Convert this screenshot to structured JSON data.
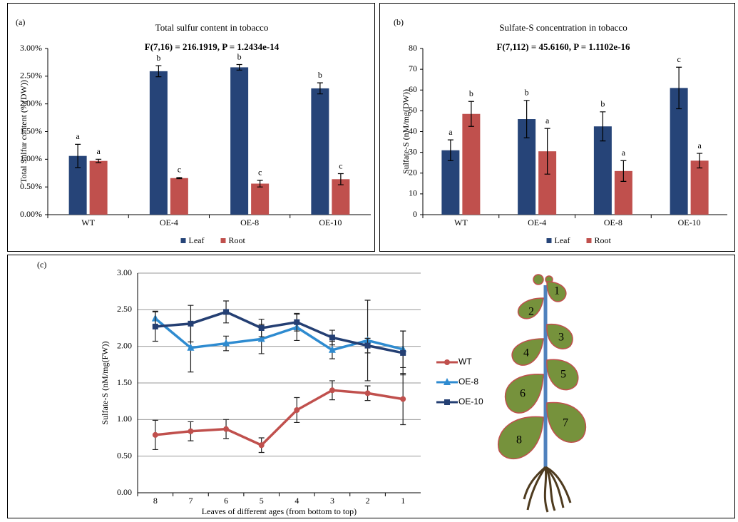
{
  "chart_data": [
    {
      "type": "bar",
      "panel": "(a)",
      "title": "Total sulfur content in tobacco",
      "subtitle": "F(7,16) = 216.1919, P = 1.2434e-14",
      "ylabel": "Total Sulfur content (%(DW))",
      "categories": [
        "WT",
        "OE-4",
        "OE-8",
        "OE-10"
      ],
      "series": [
        {
          "name": "Leaf",
          "color": "#264478",
          "values": [
            1.06,
            2.59,
            2.66,
            2.28
          ],
          "errors": [
            0.21,
            0.1,
            0.05,
            0.1
          ],
          "letters": [
            "a",
            "b",
            "b",
            "b"
          ]
        },
        {
          "name": "Root",
          "color": "#C0504D",
          "values": [
            0.97,
            0.66,
            0.56,
            0.64
          ],
          "errors": [
            0.03,
            0.01,
            0.06,
            0.1
          ],
          "letters": [
            "a",
            "c",
            "c",
            "c"
          ]
        }
      ],
      "ylim": [
        0,
        3
      ],
      "yticks": [
        {
          "value": 0,
          "label": "0.00%"
        },
        {
          "value": 0.5,
          "label": "0.50%"
        },
        {
          "value": 1,
          "label": "1.00%"
        },
        {
          "value": 1.5,
          "label": "1.50%"
        },
        {
          "value": 2,
          "label": "2.00%"
        },
        {
          "value": 2.5,
          "label": "2.50%"
        },
        {
          "value": 3,
          "label": "3.00%"
        }
      ],
      "legend": "bottom"
    },
    {
      "type": "bar",
      "panel": "(b)",
      "title": "Sulfate-S concentration in tobacco",
      "subtitle": "F(7,112) = 45.6160, P = 1.1102e-16",
      "ylabel": "Sulfate-S (nM/mg(DW))",
      "categories": [
        "WT",
        "OE-4",
        "OE-8",
        "OE-10"
      ],
      "series": [
        {
          "name": "Leaf",
          "color": "#264478",
          "values": [
            31,
            46,
            42.5,
            61
          ],
          "errors": [
            5,
            9,
            7,
            10
          ],
          "letters": [
            "a",
            "b",
            "b",
            "c"
          ]
        },
        {
          "name": "Root",
          "color": "#C0504D",
          "values": [
            48.5,
            30.5,
            21,
            26
          ],
          "errors": [
            6,
            11,
            5,
            3.5
          ],
          "letters": [
            "b",
            "a",
            "a",
            "a"
          ]
        }
      ],
      "ylim": [
        0,
        80
      ],
      "yticks": [
        0,
        10,
        20,
        30,
        40,
        50,
        60,
        70,
        80
      ],
      "legend": "bottom"
    },
    {
      "type": "line",
      "panel": "(c)",
      "xlabel": "Leaves of different ages (from bottom to top)",
      "ylabel": "Sulfate-S (nM/mg(FW))",
      "categories": [
        "8",
        "7",
        "6",
        "5",
        "4",
        "3",
        "2",
        "1"
      ],
      "series": [
        {
          "name": "WT",
          "color": "#C0504D",
          "marker": "circle",
          "values": [
            0.79,
            0.84,
            0.87,
            0.65,
            1.13,
            1.4,
            1.36,
            1.28
          ],
          "errors": [
            0.2,
            0.13,
            0.13,
            0.1,
            0.17,
            0.13,
            0.1,
            0.35
          ]
        },
        {
          "name": "OE-8",
          "color": "#2E8BD0",
          "marker": "triangle",
          "values": [
            2.38,
            1.98,
            2.04,
            2.1,
            2.26,
            1.95,
            2.08,
            1.96
          ],
          "errors": [
            0.1,
            0.33,
            0.1,
            0.2,
            0.18,
            0.12,
            0.55,
            0.25
          ]
        },
        {
          "name": "OE-10",
          "color": "#243F73",
          "marker": "square",
          "values": [
            2.27,
            2.31,
            2.47,
            2.25,
            2.33,
            2.12,
            2.01,
            1.91
          ],
          "errors": [
            0.2,
            0.25,
            0.15,
            0.12,
            0.12,
            0.1,
            0.1,
            0.3
          ]
        }
      ],
      "ylim": [
        0,
        3
      ],
      "yticks": [
        {
          "value": 0,
          "label": "0.00"
        },
        {
          "value": 0.5,
          "label": "0.50"
        },
        {
          "value": 1,
          "label": "1.00"
        },
        {
          "value": 1.5,
          "label": "1.50"
        },
        {
          "value": 2,
          "label": "2.00"
        },
        {
          "value": 2.5,
          "label": "2.50"
        },
        {
          "value": 3,
          "label": "3.00"
        }
      ],
      "grid": true,
      "legend": "right"
    }
  ],
  "plant": {
    "leaves": [
      "1",
      "2",
      "3",
      "4",
      "5",
      "6",
      "7",
      "8"
    ]
  }
}
